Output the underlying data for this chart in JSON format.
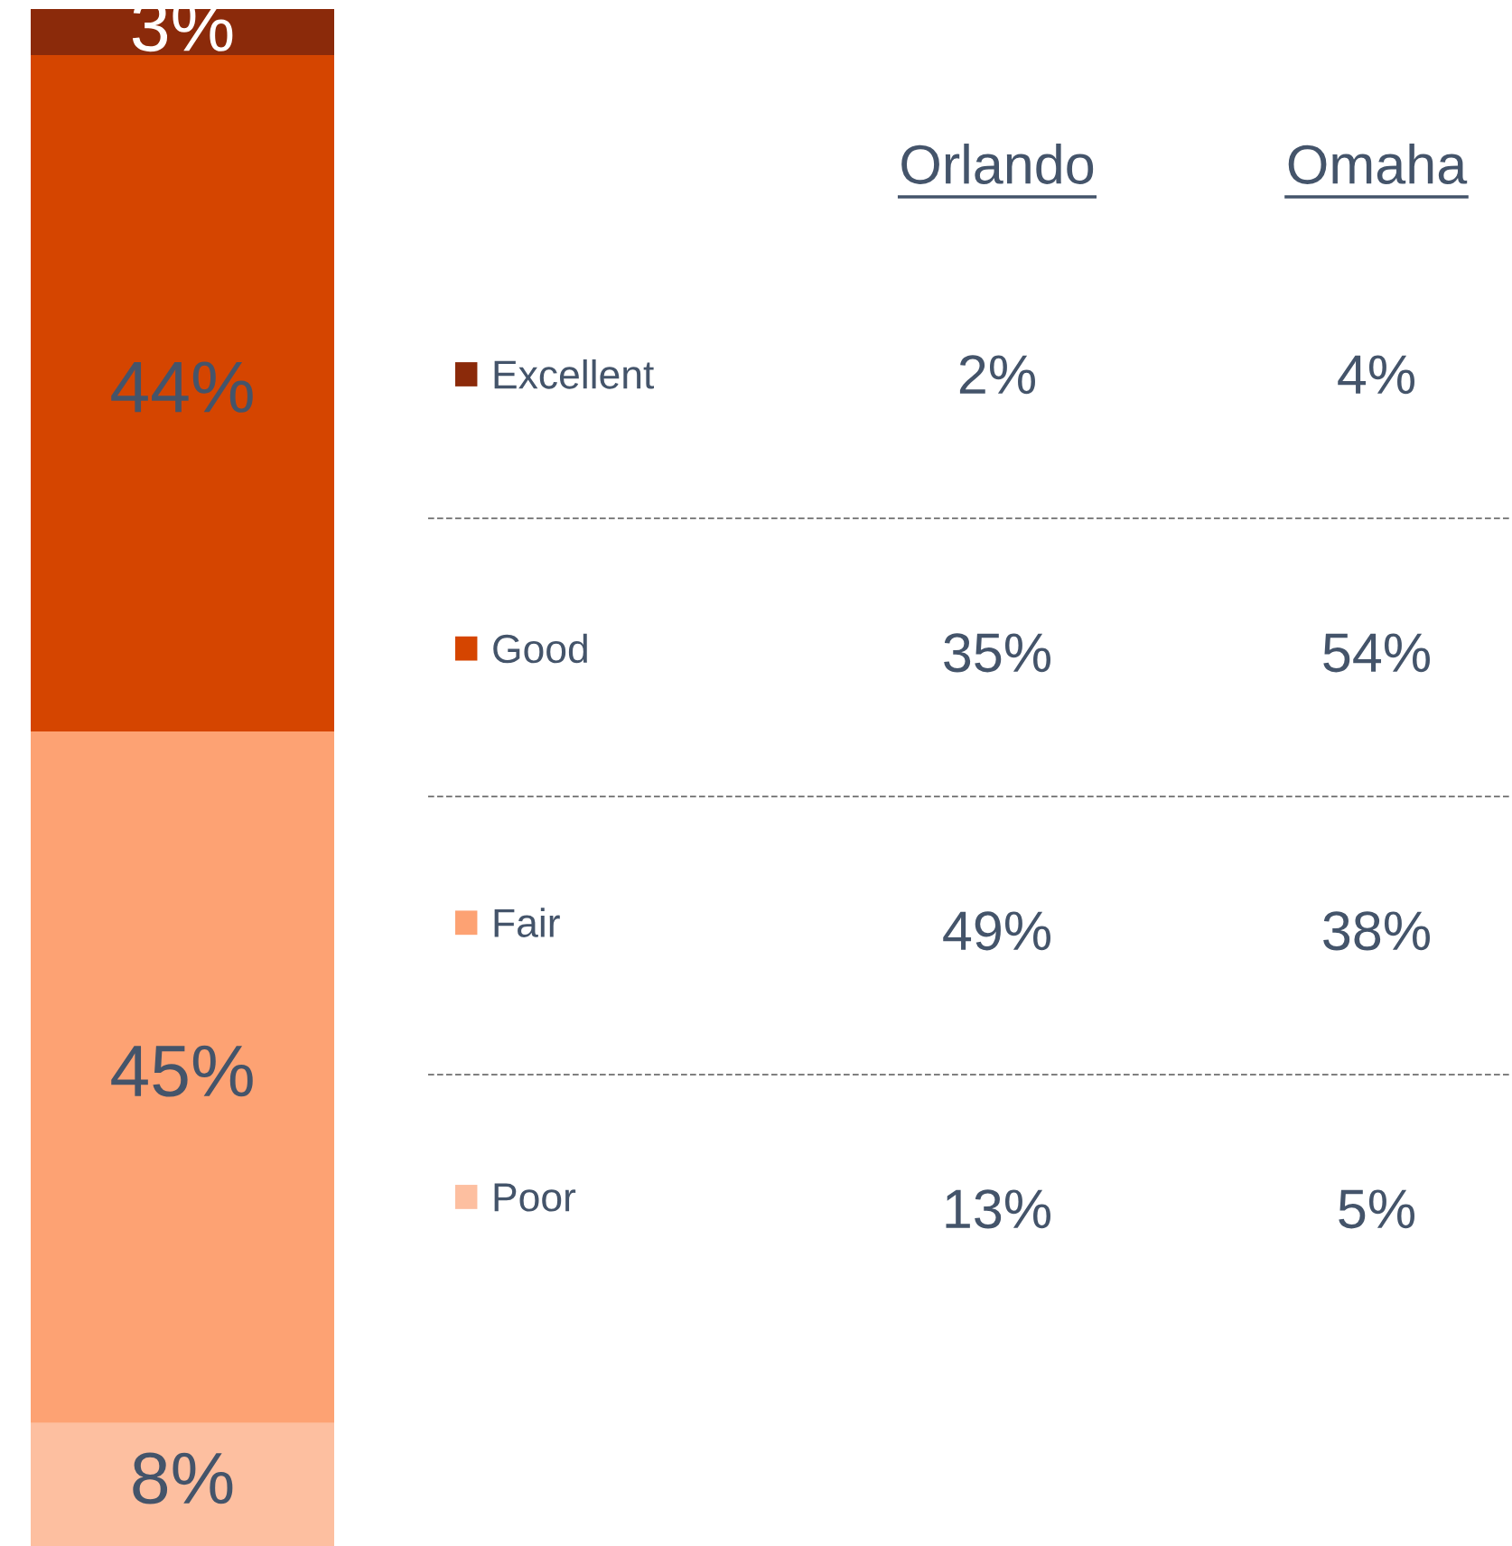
{
  "chart_data": [
    {
      "type": "bar",
      "stacked": true,
      "categories": [
        null
      ],
      "legend": "right",
      "series": [
        {
          "name": "Poor",
          "color": "#fdbfa0",
          "values": [
            8
          ],
          "value_labels": [
            "8%"
          ]
        },
        {
          "name": "Fair",
          "color": "#fda273",
          "values": [
            45
          ],
          "value_labels": [
            "45%"
          ]
        },
        {
          "name": "Good",
          "color": "#d54500",
          "values": [
            44
          ],
          "value_labels": [
            "44%"
          ]
        },
        {
          "name": "Excellent",
          "color": "#8b2a0a",
          "values": [
            3
          ],
          "value_labels": [
            "3%"
          ]
        }
      ]
    },
    {
      "type": "other",
      "categories": [
        "Orlando",
        "Omaha"
      ],
      "cell_labels": [
        [
          "2%",
          "4%"
        ],
        [
          "35%",
          "54%"
        ],
        [
          "49%",
          "38%"
        ],
        [
          "13%",
          "5%"
        ]
      ]
    }
  ]
}
